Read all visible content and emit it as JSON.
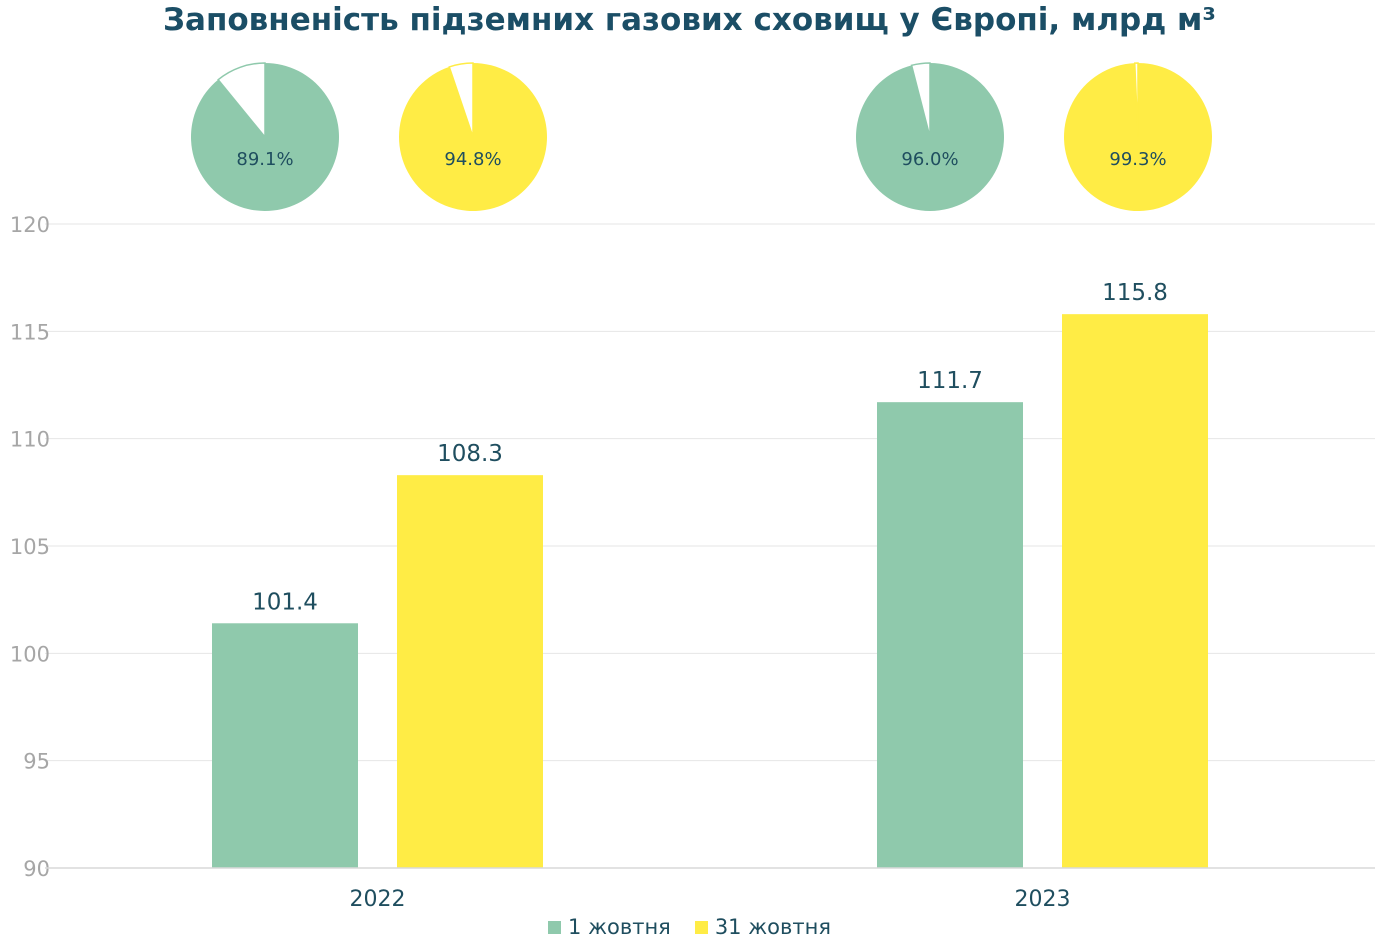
{
  "colors": {
    "green": "#8fc9ac",
    "yellow": "#ffec45",
    "text": "#1f4e5f",
    "title": "#1b4e66",
    "grid": "#e6e6e6",
    "tick": "#a6a6a6"
  },
  "chart_data": {
    "type": "bar",
    "title": "Заповненість підземних газових сховищ у Європі, млрд м³",
    "categories": [
      "2022",
      "2023"
    ],
    "series": [
      {
        "name": "1 жовтня",
        "values": [
          101.4,
          111.7
        ],
        "value_labels": [
          "101.4",
          "111.7"
        ],
        "color": "#8fc9ac"
      },
      {
        "name": "31 жовтня",
        "values": [
          108.3,
          115.8
        ],
        "value_labels": [
          "108.3",
          "115.8"
        ],
        "color": "#ffec45"
      }
    ],
    "ylim": [
      90,
      120
    ],
    "yticks": [
      "90",
      "95",
      "100",
      "105",
      "110",
      "115",
      "120"
    ],
    "grid": true,
    "legend": "bottom",
    "pies": [
      {
        "category": "2022",
        "series": "1 жовтня",
        "percent": 89.1,
        "label": "89.1%"
      },
      {
        "category": "2022",
        "series": "31 жовтня",
        "percent": 94.8,
        "label": "94.8%"
      },
      {
        "category": "2023",
        "series": "1 жовтня",
        "percent": 96.0,
        "label": "96.0%"
      },
      {
        "category": "2023",
        "series": "31 жовтня",
        "percent": 99.3,
        "label": "99.3%"
      }
    ]
  }
}
